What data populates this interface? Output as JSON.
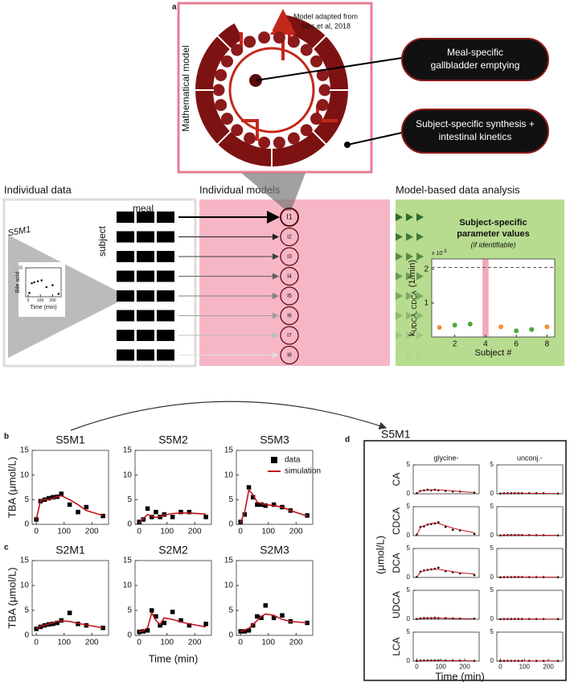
{
  "figure": {
    "panel_labels": [
      "a",
      "b",
      "c",
      "d"
    ],
    "model_box_title": "Mathematical model",
    "model_source": [
      "Model adapted from",
      "Sips et al, 2018"
    ],
    "callouts": [
      [
        "Meal-specific",
        "gallbladder emptying"
      ],
      [
        "Subject-specific synthesis +",
        "intestinal kinetics"
      ]
    ],
    "section_titles": [
      "Individual data",
      "Individual models",
      "Model-based data analysis"
    ],
    "grid_labels": {
      "columns": "meal",
      "rows": "subject"
    },
    "example_id": "S5M1",
    "models": [
      "I1",
      "I2",
      "I3",
      "I4",
      "I5",
      "I6",
      "I7",
      "I8"
    ],
    "panel_d": {
      "title": "S5M1",
      "unit_label": "(μmol/L)",
      "xlabel": "Time (min)"
    }
  },
  "chart_data": [
    {
      "type": "scatter",
      "ylabel": "Bile acid",
      "xlabel": "Time (min)",
      "x": [
        10,
        30,
        50,
        80,
        110,
        150,
        200,
        250
      ],
      "xlim": [
        -20,
        270
      ],
      "ylim": [
        0,
        15
      ],
      "xticks": [
        0,
        100,
        200
      ],
      "yticks": [
        15
      ],
      "series": [
        {
          "kind": "markers",
          "marker": "square",
          "color": "#000",
          "values": [
            2,
            7,
            7.5,
            8,
            8.5,
            5,
            6,
            1.5
          ]
        }
      ]
    },
    {
      "type": "scatter",
      "title": [
        "Subject-specific",
        "parameter values"
      ],
      "subtitle": "(if identifiable)",
      "ylabel": {
        "symbol": "k",
        "subscript": "UDCA, CDCA",
        "unit": "(1/min)"
      },
      "multiplier": {
        "base": "x 10",
        "exponent": "-3"
      },
      "xlabel": "Subject #",
      "x": [
        1,
        2,
        3,
        4,
        5,
        6,
        7,
        8
      ],
      "xlim": [
        0.5,
        8.5
      ],
      "ylim": [
        0,
        2.3
      ],
      "xticks": [
        2,
        4,
        6,
        8
      ],
      "yticks": [
        1,
        2
      ],
      "reference_line": 2.05,
      "highlight_x": 4,
      "highlight_color": "#f2a7b8",
      "colors": [
        "#f0923a",
        "#4fa83a",
        "#4fa83a",
        null,
        "#f0923a",
        "#4fa83a",
        "#4fa83a",
        "#f0923a"
      ],
      "series": [
        {
          "kind": "markers",
          "marker": "circle",
          "values": [
            0.28,
            0.35,
            0.38,
            null,
            0.3,
            0.18,
            0.22,
            0.3
          ]
        }
      ]
    },
    {
      "type": "line",
      "title": "S5M1",
      "ylabel": "TBA (μmol/L)",
      "x": [
        0,
        15,
        30,
        45,
        60,
        75,
        90,
        120,
        150,
        180,
        240
      ],
      "xlim": [
        -15,
        260
      ],
      "ylim": [
        0,
        15
      ],
      "xticks": [
        0,
        100,
        200
      ],
      "yticks": [
        0,
        5,
        10,
        15
      ],
      "series": [
        {
          "kind": "markers",
          "marker": "square",
          "color": "#000",
          "values": [
            1,
            4.7,
            5,
            5.3,
            5.5,
            5.6,
            6.2,
            4,
            2.5,
            3.5,
            1.7
          ]
        },
        {
          "kind": "line",
          "color": "#c0141c",
          "values": [
            1,
            4.8,
            5,
            5.1,
            5.3,
            5.6,
            5.8,
            5,
            4,
            2.8,
            1.8
          ]
        }
      ]
    },
    {
      "type": "line",
      "title": "S5M2",
      "x": [
        0,
        15,
        30,
        45,
        60,
        75,
        90,
        120,
        150,
        180,
        240
      ],
      "xlim": [
        -15,
        260
      ],
      "ylim": [
        0,
        15
      ],
      "xticks": [
        0,
        100,
        200
      ],
      "yticks": [
        0,
        5,
        10,
        15
      ],
      "series": [
        {
          "kind": "markers",
          "marker": "square",
          "color": "#000",
          "values": [
            0.5,
            1,
            3.2,
            1.5,
            2.5,
            1.5,
            2,
            1.5,
            2.5,
            2.5,
            1.5
          ]
        },
        {
          "kind": "line",
          "color": "#c0141c",
          "values": [
            0.3,
            1.2,
            2,
            1.7,
            1.4,
            1.6,
            1.9,
            2.2,
            2.3,
            2.3,
            2.1
          ]
        }
      ]
    },
    {
      "type": "line",
      "title": "S5M3",
      "legend": "upper right",
      "x": [
        0,
        15,
        30,
        45,
        60,
        75,
        90,
        120,
        150,
        180,
        240
      ],
      "xlim": [
        -15,
        260
      ],
      "ylim": [
        0,
        15
      ],
      "xticks": [
        0,
        100,
        200
      ],
      "yticks": [
        0,
        5,
        10,
        15
      ],
      "series": [
        {
          "name": "data",
          "kind": "markers",
          "marker": "square",
          "color": "#000",
          "values": [
            0.5,
            2,
            7.5,
            5.5,
            4,
            4,
            3.8,
            4,
            3.5,
            2.8,
            1.8
          ]
        },
        {
          "name": "simulation",
          "kind": "line",
          "color": "#c0141c",
          "values": [
            0.3,
            2.5,
            7,
            6,
            4.5,
            4.2,
            4,
            3.8,
            3.5,
            2.8,
            1.7
          ]
        }
      ]
    },
    {
      "type": "line",
      "title": "S2M1",
      "ylabel": "TBA (μmol/L)",
      "x": [
        0,
        15,
        30,
        45,
        60,
        75,
        90,
        120,
        150,
        180,
        240
      ],
      "xlim": [
        -15,
        260
      ],
      "ylim": [
        0,
        15
      ],
      "xticks": [
        0,
        100,
        200
      ],
      "yticks": [
        0,
        5,
        10,
        15
      ],
      "series": [
        {
          "kind": "markers",
          "marker": "square",
          "color": "#000",
          "values": [
            1.3,
            1.7,
            2,
            2.2,
            2.3,
            2.5,
            3,
            4.5,
            2.3,
            2,
            1.5
          ]
        },
        {
          "kind": "line",
          "color": "#c0141c",
          "values": [
            1.3,
            1.8,
            2,
            2.3,
            2.5,
            2.8,
            2.9,
            2.8,
            2.4,
            2.1,
            1.5
          ]
        }
      ]
    },
    {
      "type": "line",
      "title": "S2M2",
      "xlabel": "Time (min)",
      "x": [
        0,
        15,
        30,
        45,
        60,
        75,
        90,
        120,
        150,
        180,
        240
      ],
      "xlim": [
        -15,
        260
      ],
      "ylim": [
        0,
        15
      ],
      "xticks": [
        0,
        100,
        200
      ],
      "yticks": [
        0,
        5,
        10,
        15
      ],
      "series": [
        {
          "kind": "markers",
          "marker": "square",
          "color": "#000",
          "values": [
            0.7,
            0.8,
            1,
            5,
            3.8,
            2,
            2.5,
            4.7,
            3,
            2,
            2.3
          ]
        },
        {
          "kind": "line",
          "color": "#c0141c",
          "values": [
            0.7,
            0.9,
            1.5,
            4.5,
            3,
            2.2,
            3.5,
            3.2,
            2.7,
            2.3,
            1.7
          ]
        }
      ]
    },
    {
      "type": "line",
      "title": "S2M3",
      "x": [
        0,
        15,
        30,
        45,
        60,
        75,
        90,
        120,
        150,
        180,
        240
      ],
      "xlim": [
        -15,
        260
      ],
      "ylim": [
        0,
        15
      ],
      "xticks": [
        0,
        100,
        200
      ],
      "yticks": [
        0,
        5,
        10,
        15
      ],
      "series": [
        {
          "kind": "markers",
          "marker": "square",
          "color": "#000",
          "values": [
            0.8,
            0.8,
            1,
            2,
            3.8,
            3.5,
            6,
            3.5,
            4,
            2.8,
            2.5
          ]
        },
        {
          "kind": "line",
          "color": "#c0141c",
          "values": [
            0.8,
            1,
            1.4,
            2.2,
            3,
            3.8,
            4.3,
            4,
            3.2,
            2.8,
            2.5
          ]
        }
      ]
    },
    {
      "type": "line",
      "title": "glycine-",
      "ylabel": "CA",
      "x": [
        0,
        15,
        30,
        45,
        60,
        75,
        90,
        120,
        150,
        180,
        240
      ],
      "xlim": [
        -15,
        260
      ],
      "ylim": [
        0,
        5
      ],
      "yticks": [
        0,
        5
      ],
      "series": [
        {
          "kind": "markers",
          "marker": "circle",
          "color": "#000",
          "values": [
            0.1,
            0.5,
            0.6,
            0.7,
            0.6,
            0.7,
            0.6,
            0.5,
            0.4,
            0.4,
            0.2
          ]
        },
        {
          "kind": "line",
          "color": "#c0141c",
          "values": [
            0.1,
            0.5,
            0.6,
            0.6,
            0.7,
            0.7,
            0.7,
            0.6,
            0.5,
            0.4,
            0.2
          ]
        }
      ]
    },
    {
      "type": "line",
      "title": "unconj.-",
      "x": [
        0,
        15,
        30,
        45,
        60,
        75,
        90,
        120,
        150,
        180,
        240
      ],
      "xlim": [
        -15,
        260
      ],
      "ylim": [
        0,
        5
      ],
      "yticks": [
        0,
        5
      ],
      "series": [
        {
          "kind": "markers",
          "marker": "circle",
          "color": "#000",
          "values": [
            0.05,
            0.1,
            0.1,
            0.1,
            0.1,
            0.1,
            0.1,
            0.1,
            0.1,
            0.1,
            0.05
          ]
        },
        {
          "kind": "line",
          "color": "#c0141c",
          "values": [
            0.05,
            0.08,
            0.08,
            0.08,
            0.08,
            0.08,
            0.08,
            0.08,
            0.08,
            0.07,
            0.06
          ]
        }
      ]
    },
    {
      "type": "line",
      "ylabel": "CDCA",
      "x": [
        0,
        15,
        30,
        45,
        60,
        75,
        90,
        120,
        150,
        180,
        240
      ],
      "xlim": [
        -15,
        260
      ],
      "ylim": [
        0,
        5
      ],
      "yticks": [
        0,
        5
      ],
      "series": [
        {
          "kind": "markers",
          "marker": "circle",
          "color": "#000",
          "values": [
            0.2,
            1.5,
            1.6,
            1.9,
            2,
            2.1,
            2.3,
            1.5,
            1,
            0.9,
            0.3
          ]
        },
        {
          "kind": "line",
          "color": "#c0141c",
          "values": [
            0.2,
            1.4,
            1.7,
            1.9,
            2.1,
            2.2,
            2.1,
            1.7,
            1.3,
            1,
            0.5
          ]
        }
      ]
    },
    {
      "type": "line",
      "x": [
        0,
        15,
        30,
        45,
        60,
        75,
        90,
        120,
        150,
        180,
        240
      ],
      "xlim": [
        -15,
        260
      ],
      "ylim": [
        0,
        5
      ],
      "yticks": [
        0,
        5
      ],
      "series": [
        {
          "kind": "markers",
          "marker": "circle",
          "color": "#000",
          "values": [
            0.05,
            0.08,
            0.1,
            0.1,
            0.1,
            0.1,
            0.1,
            0.1,
            0.08,
            0.08,
            0.05
          ]
        },
        {
          "kind": "line",
          "color": "#c0141c",
          "values": [
            0.05,
            0.07,
            0.08,
            0.08,
            0.08,
            0.08,
            0.08,
            0.08,
            0.07,
            0.07,
            0.06
          ]
        }
      ]
    },
    {
      "type": "line",
      "ylabel": "DCA",
      "x": [
        0,
        15,
        30,
        45,
        60,
        75,
        90,
        120,
        150,
        180,
        240
      ],
      "xlim": [
        -15,
        260
      ],
      "ylim": [
        0,
        5
      ],
      "yticks": [
        0,
        5
      ],
      "series": [
        {
          "kind": "markers",
          "marker": "circle",
          "color": "#000",
          "values": [
            0.1,
            1,
            1.2,
            1.3,
            1.4,
            1.5,
            1.7,
            1.1,
            0.9,
            0.7,
            0.4
          ]
        },
        {
          "kind": "line",
          "color": "#c0141c",
          "values": [
            0.1,
            0.9,
            1.2,
            1.3,
            1.4,
            1.4,
            1.4,
            1.2,
            1,
            0.8,
            0.6
          ]
        }
      ]
    },
    {
      "type": "line",
      "x": [
        0,
        15,
        30,
        45,
        60,
        75,
        90,
        120,
        150,
        180,
        240
      ],
      "xlim": [
        -15,
        260
      ],
      "ylim": [
        0,
        5
      ],
      "yticks": [
        0,
        5
      ],
      "series": [
        {
          "kind": "markers",
          "marker": "circle",
          "color": "#000",
          "values": [
            0.04,
            0.06,
            0.07,
            0.07,
            0.08,
            0.08,
            0.08,
            0.07,
            0.07,
            0.06,
            0.05
          ]
        },
        {
          "kind": "line",
          "color": "#c0141c",
          "values": [
            0.04,
            0.06,
            0.06,
            0.07,
            0.07,
            0.07,
            0.07,
            0.07,
            0.06,
            0.06,
            0.05
          ]
        }
      ]
    },
    {
      "type": "line",
      "ylabel": "UDCA",
      "x": [
        0,
        15,
        30,
        45,
        60,
        75,
        90,
        120,
        150,
        180,
        240
      ],
      "xlim": [
        -15,
        260
      ],
      "ylim": [
        0,
        5
      ],
      "yticks": [
        0,
        5
      ],
      "series": [
        {
          "kind": "markers",
          "marker": "circle",
          "color": "#000",
          "values": [
            0.05,
            0.15,
            0.2,
            0.2,
            0.2,
            0.25,
            0.2,
            0.2,
            0.15,
            0.12,
            0.1
          ]
        },
        {
          "kind": "line",
          "color": "#c0141c",
          "values": [
            0.05,
            0.15,
            0.18,
            0.2,
            0.2,
            0.2,
            0.2,
            0.18,
            0.15,
            0.12,
            0.08
          ]
        }
      ]
    },
    {
      "type": "line",
      "x": [
        0,
        15,
        30,
        45,
        60,
        75,
        90,
        120,
        150,
        180,
        240
      ],
      "xlim": [
        -15,
        260
      ],
      "ylim": [
        0,
        5
      ],
      "yticks": [
        0,
        5
      ],
      "series": [
        {
          "kind": "markers",
          "marker": "circle",
          "color": "#000",
          "values": [
            0.03,
            0.05,
            0.05,
            0.06,
            0.06,
            0.06,
            0.06,
            0.05,
            0.05,
            0.05,
            0.04
          ]
        },
        {
          "kind": "line",
          "color": "#c0141c",
          "values": [
            0.03,
            0.05,
            0.05,
            0.05,
            0.05,
            0.05,
            0.05,
            0.05,
            0.05,
            0.04,
            0.04
          ]
        }
      ]
    },
    {
      "type": "line",
      "ylabel": "LCA",
      "x": [
        0,
        15,
        30,
        45,
        60,
        75,
        90,
        120,
        150,
        180,
        240
      ],
      "xlim": [
        -15,
        260
      ],
      "ylim": [
        0,
        5
      ],
      "xticks": [
        0,
        100,
        200
      ],
      "yticks": [
        0,
        5
      ],
      "series": [
        {
          "kind": "markers",
          "marker": "circle",
          "color": "#000",
          "values": [
            0.02,
            0.1,
            0.1,
            0.12,
            0.12,
            0.12,
            0.12,
            0.1,
            0.1,
            0.08,
            0.05
          ]
        },
        {
          "kind": "line",
          "color": "#c0141c",
          "values": [
            0.02,
            0.08,
            0.1,
            0.1,
            0.11,
            0.11,
            0.11,
            0.1,
            0.09,
            0.07,
            0.05
          ]
        }
      ]
    },
    {
      "type": "line",
      "x": [
        0,
        15,
        30,
        45,
        60,
        75,
        90,
        120,
        150,
        180,
        240
      ],
      "xlim": [
        -15,
        260
      ],
      "ylim": [
        0,
        5
      ],
      "xticks": [
        0,
        100,
        200
      ],
      "yticks": [
        0,
        5
      ],
      "series": [
        {
          "kind": "markers",
          "marker": "circle",
          "color": "#000",
          "values": [
            0.02,
            0.04,
            0.05,
            0.05,
            0.05,
            0.05,
            0.05,
            0.05,
            0.04,
            0.04,
            0.03
          ]
        },
        {
          "kind": "line",
          "color": "#c0141c",
          "values": [
            0.02,
            0.04,
            0.04,
            0.04,
            0.04,
            0.04,
            0.04,
            0.04,
            0.04,
            0.04,
            0.03
          ]
        }
      ]
    }
  ]
}
